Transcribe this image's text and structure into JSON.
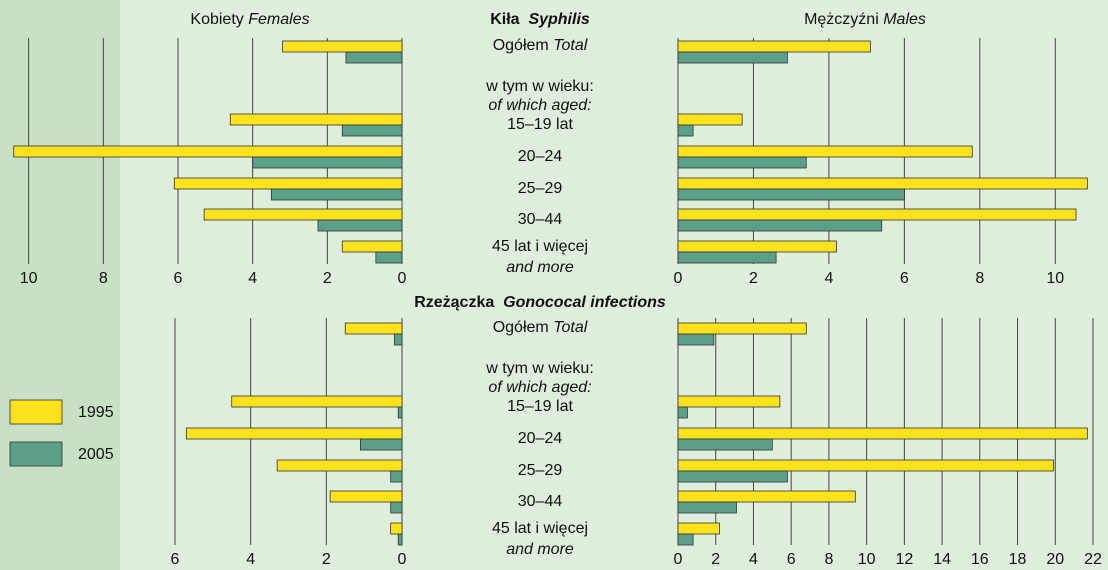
{
  "chart_data": [
    {
      "type": "butterfly",
      "title": "Kiła",
      "title_en": "Syphilis",
      "categories": [
        "Ogółem",
        "15–19 lat",
        "20–24",
        "25–29",
        "30–44",
        "45 lat i więcej"
      ],
      "categories_en": [
        "Total",
        null,
        null,
        null,
        null,
        "and more"
      ],
      "subgroup_label": "w tym w wieku:",
      "subgroup_label_en": "of which aged:",
      "left": {
        "title": "Kobiety",
        "title_en": "Females",
        "xlim": [
          0,
          10.5
        ],
        "xticks": [
          0,
          2,
          4,
          6,
          8,
          10
        ],
        "series": [
          {
            "values": [
              3.2,
              4.6,
              10.4,
              6.1,
              5.3,
              1.6
            ]
          },
          {
            "values": [
              1.5,
              1.6,
              4.0,
              3.5,
              2.25,
              0.7
            ]
          }
        ]
      },
      "right": {
        "title": "Mężczyźni",
        "title_en": "Males",
        "xlim": [
          0,
          11
        ],
        "xticks": [
          0,
          2,
          4,
          6,
          8,
          10
        ],
        "series": [
          {
            "values": [
              5.1,
              1.7,
              7.8,
              10.85,
              10.55,
              4.2
            ]
          },
          {
            "values": [
              2.9,
              0.4,
              3.4,
              6.0,
              5.4,
              2.6
            ]
          }
        ]
      }
    },
    {
      "type": "butterfly",
      "title": "Rzeżączka",
      "title_en": "Gonococal infections",
      "categories": [
        "Ogółem",
        "15–19 lat",
        "20–24",
        "25–29",
        "30–44",
        "45 lat i więcej"
      ],
      "categories_en": [
        "Total",
        null,
        null,
        null,
        null,
        "and more"
      ],
      "subgroup_label": "w tym w wieku:",
      "subgroup_label_en": "of which aged:",
      "left": {
        "xlim": [
          0,
          6
        ],
        "xticks": [
          0,
          2,
          4,
          6
        ],
        "series": [
          {
            "values": [
              1.5,
              4.5,
              5.7,
              3.3,
              1.9,
              0.3
            ]
          },
          {
            "values": [
              0.2,
              0.1,
              1.1,
              0.3,
              0.3,
              0.1
            ]
          }
        ]
      },
      "right": {
        "xlim": [
          0,
          22
        ],
        "xticks": [
          0,
          2,
          4,
          6,
          8,
          10,
          12,
          14,
          16,
          18,
          20,
          22
        ],
        "series": [
          {
            "values": [
              6.8,
              5.4,
              21.7,
              19.9,
              9.4,
              2.2
            ]
          },
          {
            "values": [
              1.9,
              0.5,
              5.0,
              5.8,
              3.1,
              0.8
            ]
          }
        ]
      }
    }
  ],
  "legend": [
    {
      "name": "1995",
      "color": "#ffe21c"
    },
    {
      "name": "2005",
      "color": "#5c9f88"
    }
  ]
}
